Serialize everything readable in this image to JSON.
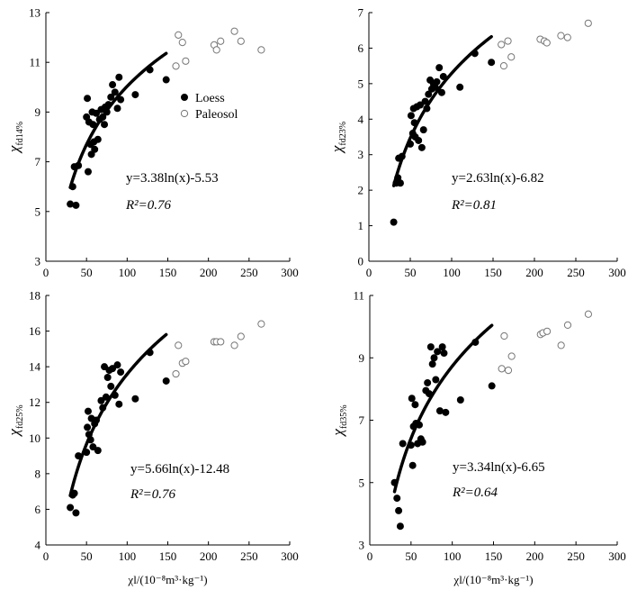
{
  "chart_data": [
    {
      "type": "scatter",
      "ylabel": "χ",
      "ylabel_sub": "fd14%",
      "xlabel": "",
      "xlim": [
        0,
        300
      ],
      "ylim": [
        3,
        13
      ],
      "xticks": [
        0,
        50,
        100,
        150,
        200,
        250,
        300
      ],
      "yticks": [
        3,
        5,
        7,
        9,
        11,
        13
      ],
      "fit": {
        "a": 3.38,
        "b": -5.53,
        "x_range": [
          30,
          148
        ]
      },
      "equation": "y=3.38ln(x)-5.53",
      "r2": "R²=0.76",
      "legend": {
        "loess": "Loess",
        "paleosol": "Paleosol"
      },
      "series": [
        {
          "name": "Loess",
          "marker": "filled",
          "points": [
            [
              30,
              5.3
            ],
            [
              33,
              6.0
            ],
            [
              35,
              6.8
            ],
            [
              37,
              5.25
            ],
            [
              40,
              6.85
            ],
            [
              50,
              8.8
            ],
            [
              51,
              9.55
            ],
            [
              52,
              6.6
            ],
            [
              53,
              8.6
            ],
            [
              55,
              7.7
            ],
            [
              56,
              7.3
            ],
            [
              57,
              9.0
            ],
            [
              58,
              8.5
            ],
            [
              59,
              7.8
            ],
            [
              60,
              7.5
            ],
            [
              62,
              8.95
            ],
            [
              64,
              7.9
            ],
            [
              66,
              8.7
            ],
            [
              68,
              9.1
            ],
            [
              70,
              8.8
            ],
            [
              72,
              8.5
            ],
            [
              73,
              9.2
            ],
            [
              75,
              9.0
            ],
            [
              77,
              9.3
            ],
            [
              80,
              9.6
            ],
            [
              82,
              10.1
            ],
            [
              85,
              9.8
            ],
            [
              88,
              9.15
            ],
            [
              90,
              10.4
            ],
            [
              92,
              9.5
            ],
            [
              110,
              9.7
            ],
            [
              128,
              10.7
            ],
            [
              148,
              10.3
            ]
          ]
        },
        {
          "name": "Paleosol",
          "marker": "open",
          "points": [
            [
              160,
              10.85
            ],
            [
              163,
              12.1
            ],
            [
              168,
              11.8
            ],
            [
              172,
              11.05
            ],
            [
              207,
              11.7
            ],
            [
              210,
              11.5
            ],
            [
              215,
              11.85
            ],
            [
              232,
              12.25
            ],
            [
              240,
              11.85
            ],
            [
              265,
              11.5
            ]
          ]
        }
      ]
    },
    {
      "type": "scatter",
      "ylabel": "χ",
      "ylabel_sub": "fd23%",
      "xlabel": "",
      "xlim": [
        0,
        300
      ],
      "ylim": [
        0,
        7
      ],
      "xticks": [
        0,
        50,
        100,
        150,
        200,
        250,
        300
      ],
      "yticks": [
        0,
        1,
        2,
        3,
        4,
        5,
        6,
        7
      ],
      "fit": {
        "a": 2.63,
        "b": -6.82,
        "x_range": [
          30,
          148
        ]
      },
      "equation": "y=2.63ln(x)-6.82",
      "r2": "R²=0.81",
      "series": [
        {
          "name": "Loess",
          "marker": "filled",
          "points": [
            [
              30,
              1.1
            ],
            [
              33,
              2.2
            ],
            [
              35,
              2.35
            ],
            [
              36,
              2.9
            ],
            [
              38,
              2.2
            ],
            [
              40,
              2.95
            ],
            [
              50,
              3.3
            ],
            [
              51,
              4.1
            ],
            [
              53,
              3.6
            ],
            [
              54,
              4.3
            ],
            [
              55,
              3.9
            ],
            [
              56,
              3.5
            ],
            [
              58,
              4.35
            ],
            [
              60,
              3.4
            ],
            [
              62,
              4.4
            ],
            [
              64,
              3.2
            ],
            [
              66,
              3.7
            ],
            [
              68,
              4.5
            ],
            [
              70,
              4.3
            ],
            [
              72,
              4.7
            ],
            [
              74,
              5.1
            ],
            [
              76,
              4.85
            ],
            [
              78,
              5.0
            ],
            [
              80,
              4.9
            ],
            [
              82,
              5.05
            ],
            [
              85,
              5.45
            ],
            [
              88,
              4.75
            ],
            [
              90,
              5.2
            ],
            [
              110,
              4.9
            ],
            [
              128,
              5.85
            ],
            [
              148,
              5.6
            ]
          ]
        },
        {
          "name": "Paleosol",
          "marker": "open",
          "points": [
            [
              160,
              6.1
            ],
            [
              163,
              5.5
            ],
            [
              168,
              6.2
            ],
            [
              172,
              5.75
            ],
            [
              207,
              6.25
            ],
            [
              212,
              6.2
            ],
            [
              215,
              6.15
            ],
            [
              232,
              6.35
            ],
            [
              240,
              6.3
            ],
            [
              265,
              6.7
            ]
          ]
        }
      ]
    },
    {
      "type": "scatter",
      "ylabel": "χ",
      "ylabel_sub": "fd25%",
      "xlabel": "χl/(10⁻⁸m³·kg⁻¹)",
      "xlim": [
        0,
        300
      ],
      "ylim": [
        4,
        18
      ],
      "xticks": [
        0,
        50,
        100,
        150,
        200,
        250,
        300
      ],
      "yticks": [
        4,
        6,
        8,
        10,
        12,
        14,
        16,
        18
      ],
      "fit": {
        "a": 5.66,
        "b": -12.48,
        "x_range": [
          30,
          148
        ]
      },
      "equation": "y=5.66ln(x)-12.48",
      "r2": "R²=0.76",
      "series": [
        {
          "name": "Loess",
          "marker": "filled",
          "points": [
            [
              30,
              6.1
            ],
            [
              33,
              6.8
            ],
            [
              35,
              6.9
            ],
            [
              37,
              5.8
            ],
            [
              40,
              9.0
            ],
            [
              50,
              9.2
            ],
            [
              51,
              10.6
            ],
            [
              52,
              11.5
            ],
            [
              53,
              10.2
            ],
            [
              55,
              9.9
            ],
            [
              56,
              11.1
            ],
            [
              58,
              9.5
            ],
            [
              60,
              10.8
            ],
            [
              62,
              11.0
            ],
            [
              64,
              9.3
            ],
            [
              68,
              12.1
            ],
            [
              70,
              11.7
            ],
            [
              72,
              14.0
            ],
            [
              74,
              12.3
            ],
            [
              76,
              13.4
            ],
            [
              78,
              13.8
            ],
            [
              80,
              12.9
            ],
            [
              82,
              13.9
            ],
            [
              85,
              12.4
            ],
            [
              88,
              14.1
            ],
            [
              90,
              11.9
            ],
            [
              92,
              13.7
            ],
            [
              110,
              12.2
            ],
            [
              128,
              14.8
            ],
            [
              148,
              13.2
            ]
          ]
        },
        {
          "name": "Paleosol",
          "marker": "open",
          "points": [
            [
              160,
              13.6
            ],
            [
              163,
              15.2
            ],
            [
              168,
              14.2
            ],
            [
              172,
              14.3
            ],
            [
              207,
              15.4
            ],
            [
              210,
              15.4
            ],
            [
              215,
              15.4
            ],
            [
              232,
              15.2
            ],
            [
              240,
              15.7
            ],
            [
              265,
              16.4
            ]
          ]
        }
      ]
    },
    {
      "type": "scatter",
      "ylabel": "χ",
      "ylabel_sub": "fd35%",
      "xlabel": "χl/(10⁻⁸m³·kg⁻¹)",
      "xlim": [
        0,
        300
      ],
      "ylim": [
        3,
        11
      ],
      "xticks": [
        0,
        50,
        100,
        150,
        200,
        250,
        300
      ],
      "yticks": [
        3,
        5,
        7,
        9,
        11
      ],
      "fit": {
        "a": 3.34,
        "b": -6.65,
        "x_range": [
          30,
          148
        ]
      },
      "equation": "y=3.34ln(x)-6.65",
      "r2": "R²=0.64",
      "series": [
        {
          "name": "Loess",
          "marker": "filled",
          "points": [
            [
              30,
              5.0
            ],
            [
              33,
              4.5
            ],
            [
              35,
              4.1
            ],
            [
              37,
              3.6
            ],
            [
              40,
              6.25
            ],
            [
              50,
              6.2
            ],
            [
              51,
              7.7
            ],
            [
              52,
              5.55
            ],
            [
              53,
              6.8
            ],
            [
              55,
              7.5
            ],
            [
              56,
              6.9
            ],
            [
              58,
              6.25
            ],
            [
              60,
              6.85
            ],
            [
              62,
              6.4
            ],
            [
              64,
              6.3
            ],
            [
              68,
              7.95
            ],
            [
              70,
              8.2
            ],
            [
              72,
              7.85
            ],
            [
              74,
              9.35
            ],
            [
              76,
              8.8
            ],
            [
              78,
              9.0
            ],
            [
              80,
              8.3
            ],
            [
              82,
              9.2
            ],
            [
              85,
              7.3
            ],
            [
              88,
              9.35
            ],
            [
              90,
              9.15
            ],
            [
              92,
              7.25
            ],
            [
              110,
              7.65
            ],
            [
              128,
              9.5
            ],
            [
              148,
              8.1
            ]
          ]
        },
        {
          "name": "Paleosol",
          "marker": "open",
          "points": [
            [
              160,
              8.65
            ],
            [
              163,
              9.7
            ],
            [
              168,
              8.6
            ],
            [
              172,
              9.05
            ],
            [
              207,
              9.75
            ],
            [
              210,
              9.8
            ],
            [
              215,
              9.85
            ],
            [
              232,
              9.4
            ],
            [
              240,
              10.05
            ],
            [
              265,
              10.4
            ]
          ]
        }
      ]
    }
  ]
}
